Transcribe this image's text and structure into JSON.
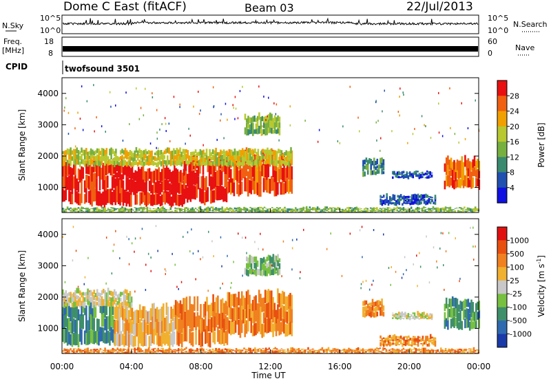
{
  "header": {
    "station": "Dome C East (fitACF)",
    "beam": "Beam 03",
    "date": "22/Jul/2013"
  },
  "panels": {
    "nsky_label": "N.Sky",
    "nsky_ticks": [
      "10^5",
      "10^0"
    ],
    "nsearch_label": "N.Search",
    "nsearch_ticks": [
      "10^5",
      "10^0"
    ],
    "freq_label_1": "Freq.",
    "freq_label_2": "[MHz]",
    "freq_ticks": [
      "18",
      "8"
    ],
    "nave_label": "Nave",
    "nave_ticks": [
      "60",
      "0"
    ],
    "cpid_label": "CPID",
    "cpid_value": "twofsound 3501"
  },
  "colorbars": {
    "power": {
      "label": "Power [dB]",
      "ticks": [
        "28",
        "24",
        "20",
        "16",
        "12",
        "8",
        "4"
      ],
      "colors": [
        "#1010e0",
        "#2050b0",
        "#3a8a70",
        "#78b040",
        "#b8c830",
        "#f0a000",
        "#f06010",
        "#e81010"
      ]
    },
    "velocity": {
      "label": "Velocity [m s",
      "label_sup": "-1",
      "label_end": "]",
      "ticks": [
        "1000",
        "500",
        "100",
        "25",
        "-25",
        "-100",
        "-500",
        "-1000"
      ],
      "colors": [
        "#1a3aa8",
        "#2f6ab0",
        "#3f8f6a",
        "#78c040",
        "#c8c8c8",
        "#f0b030",
        "#f08020",
        "#e85010",
        "#e01010"
      ]
    }
  },
  "chart_data": [
    {
      "type": "heatmap",
      "name": "power",
      "ylabel": "Slant Range [km]",
      "yticks": [
        "4000",
        "3000",
        "2000",
        "1000"
      ],
      "ylim": [
        200,
        4500
      ],
      "xlim": [
        0,
        24
      ],
      "segments": [
        {
          "t0": 0.0,
          "t1": 1.5,
          "r0": 500,
          "r1": 1700,
          "level": 7
        },
        {
          "t0": 1.5,
          "t1": 4.0,
          "r0": 450,
          "r1": 1800,
          "level": 7
        },
        {
          "t0": 4.0,
          "t1": 7.0,
          "r0": 450,
          "r1": 1600,
          "level": 7
        },
        {
          "t0": 7.0,
          "t1": 9.5,
          "r0": 550,
          "r1": 1900,
          "level": 7
        },
        {
          "t0": 9.5,
          "t1": 13.2,
          "r0": 800,
          "r1": 2100,
          "level": 6
        },
        {
          "t0": 0.0,
          "t1": 13.2,
          "r0": 1700,
          "r1": 2200,
          "level": 4
        },
        {
          "t0": 10.5,
          "t1": 12.5,
          "r0": 2700,
          "r1": 3300,
          "level": 3
        },
        {
          "t0": 17.3,
          "t1": 18.5,
          "r0": 1400,
          "r1": 1900,
          "level": 2
        },
        {
          "t0": 18.3,
          "t1": 21.5,
          "r0": 450,
          "r1": 750,
          "level": 1
        },
        {
          "t0": 19.0,
          "t1": 21.3,
          "r0": 1300,
          "r1": 1500,
          "level": 1
        },
        {
          "t0": 22.0,
          "t1": 24.0,
          "r0": 1000,
          "r1": 1900,
          "level": 6
        },
        {
          "t0": 0.0,
          "t1": 24.0,
          "r0": 200,
          "r1": 350,
          "level": 3
        }
      ]
    },
    {
      "type": "heatmap",
      "name": "velocity",
      "xlabel": "Time UT",
      "ylabel": "Slant Range [km]",
      "yticks": [
        "4000",
        "3000",
        "2000",
        "1000"
      ],
      "xticks": [
        "00:00",
        "04:00",
        "08:00",
        "12:00",
        "16:00",
        "20:00",
        "00:00"
      ],
      "ylim": [
        200,
        4500
      ],
      "xlim": [
        0,
        24
      ],
      "segments": [
        {
          "t0": 0.0,
          "t1": 3.0,
          "r0": 500,
          "r1": 1800,
          "level": 2
        },
        {
          "t0": 3.0,
          "t1": 6.5,
          "r0": 450,
          "r1": 1700,
          "level": 5
        },
        {
          "t0": 6.5,
          "t1": 9.5,
          "r0": 500,
          "r1": 1900,
          "level": 6
        },
        {
          "t0": 9.5,
          "t1": 13.2,
          "r0": 800,
          "r1": 2100,
          "level": 6
        },
        {
          "t0": 0.0,
          "t1": 4.0,
          "r0": 1700,
          "r1": 2200,
          "level": 4
        },
        {
          "t0": 10.5,
          "t1": 12.5,
          "r0": 2700,
          "r1": 3300,
          "level": 3
        },
        {
          "t0": 17.3,
          "t1": 18.5,
          "r0": 1400,
          "r1": 1900,
          "level": 6
        },
        {
          "t0": 18.3,
          "t1": 21.5,
          "r0": 450,
          "r1": 750,
          "level": 6
        },
        {
          "t0": 19.0,
          "t1": 21.3,
          "r0": 1300,
          "r1": 1500,
          "level": 4
        },
        {
          "t0": 22.0,
          "t1": 24.0,
          "r0": 1000,
          "r1": 1900,
          "level": 2
        },
        {
          "t0": 0.0,
          "t1": 24.0,
          "r0": 200,
          "r1": 350,
          "level": 6
        }
      ]
    }
  ]
}
